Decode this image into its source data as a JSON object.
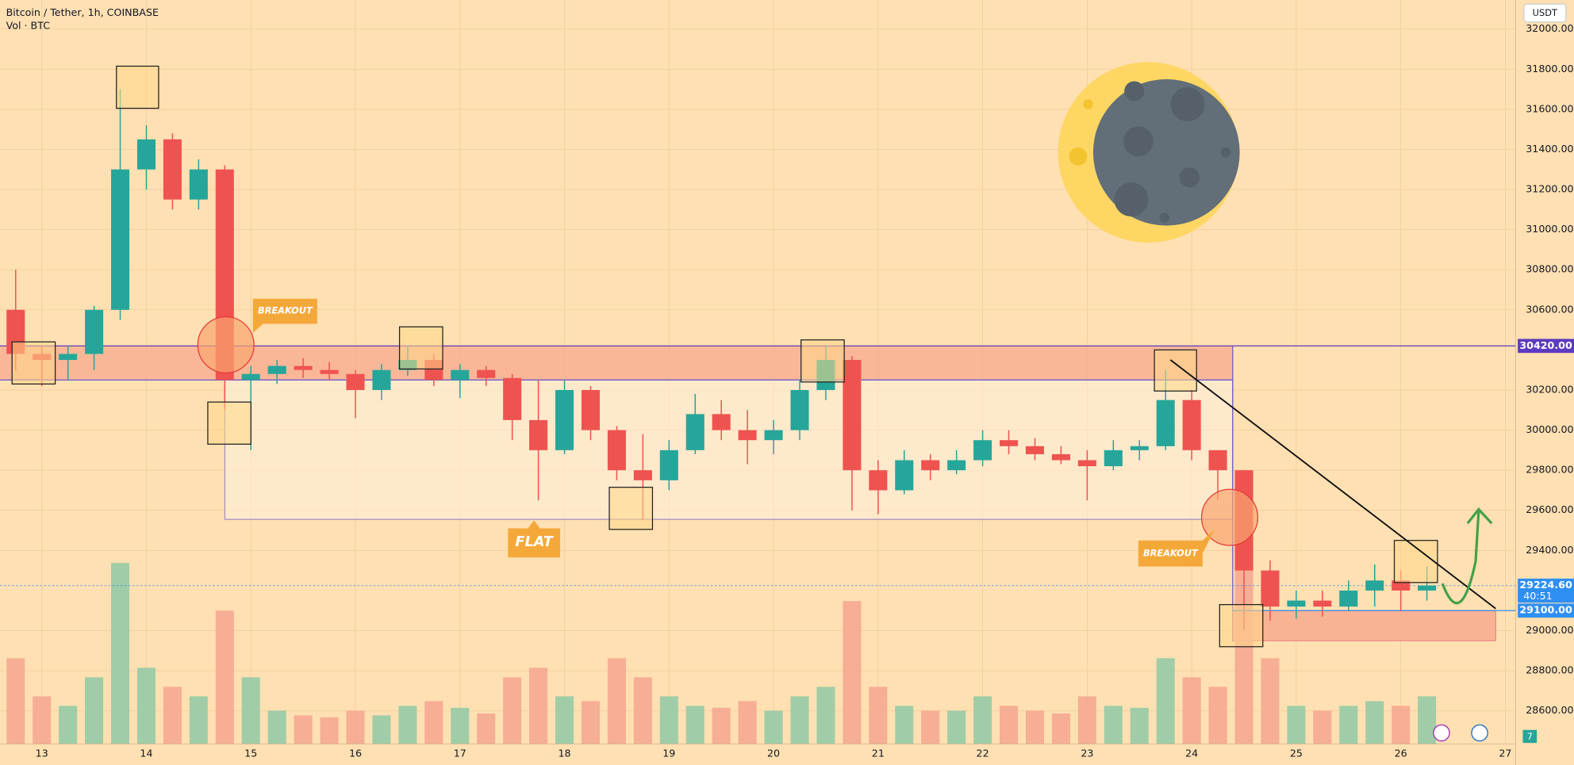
{
  "header": {
    "title": "Bitcoin / Tether, 1h, COINBASE",
    "subtitle": "Vol · BTC",
    "currency": "USDT",
    "badge": "7"
  },
  "chart_data": {
    "type": "candlestick",
    "x": [
      12.75,
      13,
      13.25,
      13.5,
      13.75,
      14,
      14.25,
      14.5,
      14.75,
      15,
      15.25,
      15.5,
      15.75,
      16,
      16.25,
      16.5,
      16.75,
      17,
      17.25,
      17.5,
      17.75,
      18,
      18.25,
      18.5,
      18.75,
      19,
      19.25,
      19.5,
      19.75,
      20,
      20.25,
      20.5,
      20.75,
      21,
      21.25,
      21.5,
      21.75,
      22,
      22.25,
      22.5,
      22.75,
      23,
      23.25,
      23.5,
      23.75,
      24,
      24.25,
      24.5,
      24.75,
      25,
      25.25,
      25.5,
      25.75,
      26,
      26.25
    ],
    "candles": [
      [
        30600,
        30800,
        30300,
        30380
      ],
      [
        30380,
        30420,
        30220,
        30350
      ],
      [
        30350,
        30420,
        30250,
        30380
      ],
      [
        30380,
        30620,
        30300,
        30600
      ],
      [
        30600,
        31700,
        30550,
        31300
      ],
      [
        31300,
        31520,
        31200,
        31450
      ],
      [
        31450,
        31480,
        31100,
        31150
      ],
      [
        31150,
        31350,
        31100,
        31300
      ],
      [
        31300,
        31320,
        30100,
        30250
      ],
      [
        30250,
        30320,
        29900,
        30280
      ],
      [
        30280,
        30350,
        30230,
        30320
      ],
      [
        30320,
        30360,
        30260,
        30300
      ],
      [
        30300,
        30340,
        30250,
        30280
      ],
      [
        30280,
        30300,
        30060,
        30200
      ],
      [
        30200,
        30330,
        30150,
        30300
      ],
      [
        30300,
        30420,
        30270,
        30350
      ],
      [
        30350,
        30380,
        30220,
        30250
      ],
      [
        30250,
        30330,
        30160,
        30300
      ],
      [
        30300,
        30320,
        30220,
        30260
      ],
      [
        30260,
        30280,
        29950,
        30050
      ],
      [
        30050,
        30250,
        29650,
        29900
      ],
      [
        29900,
        30250,
        29880,
        30200
      ],
      [
        30200,
        30220,
        29950,
        30000
      ],
      [
        30000,
        30020,
        29750,
        29800
      ],
      [
        29800,
        29980,
        29550,
        29750
      ],
      [
        29750,
        29950,
        29700,
        29900
      ],
      [
        29900,
        30180,
        29880,
        30080
      ],
      [
        30080,
        30150,
        29950,
        30000
      ],
      [
        30000,
        30100,
        29830,
        29950
      ],
      [
        29950,
        30050,
        29880,
        30000
      ],
      [
        30000,
        30250,
        29950,
        30200
      ],
      [
        30200,
        30420,
        30150,
        30350
      ],
      [
        30350,
        30370,
        29600,
        29800
      ],
      [
        29800,
        29850,
        29580,
        29700
      ],
      [
        29700,
        29900,
        29680,
        29850
      ],
      [
        29850,
        29880,
        29750,
        29800
      ],
      [
        29800,
        29900,
        29780,
        29850
      ],
      [
        29850,
        30000,
        29820,
        29950
      ],
      [
        29950,
        30000,
        29880,
        29920
      ],
      [
        29920,
        29960,
        29850,
        29880
      ],
      [
        29880,
        29920,
        29830,
        29850
      ],
      [
        29850,
        29900,
        29650,
        29820
      ],
      [
        29820,
        29950,
        29800,
        29900
      ],
      [
        29900,
        29950,
        29850,
        29920
      ],
      [
        29920,
        30300,
        29900,
        30150
      ],
      [
        30150,
        30200,
        29850,
        29900
      ],
      [
        29900,
        29900,
        29650,
        29800
      ],
      [
        29800,
        29800,
        29000,
        29300
      ],
      [
        29300,
        29350,
        29050,
        29120
      ],
      [
        29120,
        29200,
        29060,
        29150
      ],
      [
        29150,
        29200,
        29070,
        29120
      ],
      [
        29120,
        29250,
        29100,
        29200
      ],
      [
        29200,
        29330,
        29120,
        29250
      ],
      [
        29250,
        29300,
        29100,
        29200
      ],
      [
        29200,
        29320,
        29150,
        29225
      ]
    ],
    "volumes": [
      900,
      500,
      400,
      700,
      1900,
      800,
      600,
      500,
      1400,
      700,
      350,
      300,
      280,
      350,
      300,
      400,
      450,
      380,
      320,
      700,
      800,
      500,
      450,
      900,
      700,
      500,
      400,
      380,
      450,
      350,
      500,
      600,
      1500,
      600,
      400,
      350,
      350,
      500,
      400,
      350,
      320,
      500,
      400,
      380,
      900,
      700,
      600,
      2000,
      900,
      400,
      350,
      400,
      450,
      400,
      500
    ],
    "up_color": "#26a69a",
    "down_color": "#ef5350",
    "up_volume_color": "#8fc9a4",
    "down_volume_color": "#f5a48f",
    "xlim": [
      12.6,
      27.1
    ],
    "xticks": [
      13,
      14,
      15,
      16,
      17,
      18,
      19,
      20,
      21,
      22,
      23,
      24,
      25,
      26,
      27
    ],
    "ylim": [
      28435,
      32145
    ],
    "yticks": [
      {
        "value": 28600,
        "label": "28600.00"
      },
      {
        "value": 28800,
        "label": "28800.00"
      },
      {
        "value": 29000,
        "label": "29000.00"
      },
      {
        "value": 29400,
        "label": "29400.00"
      },
      {
        "value": 29600,
        "label": "29600.00"
      },
      {
        "value": 29800,
        "label": "29800.00"
      },
      {
        "value": 30000,
        "label": "30000.00"
      },
      {
        "value": 30200,
        "label": "30200.00"
      },
      {
        "value": 30600,
        "label": "30600.00"
      },
      {
        "value": 30800,
        "label": "30800.00"
      },
      {
        "value": 31000,
        "label": "31000.00"
      },
      {
        "value": 31200,
        "label": "31200.00"
      },
      {
        "value": 31400,
        "label": "31400.00"
      },
      {
        "value": 31600,
        "label": "31600.00"
      },
      {
        "value": 31800,
        "label": "31800.00"
      },
      {
        "value": 32000,
        "label": "32000.00"
      }
    ],
    "grid": true,
    "price_labels": [
      {
        "value": 30420,
        "label": "30420.00",
        "color": "#5b3bbf"
      },
      {
        "value": 29224.6,
        "label": "29224.60",
        "color": "#2e8ff2"
      },
      {
        "value": 29100,
        "label": "29100.00",
        "color": "#2e8ff2"
      }
    ],
    "countdown": "40:51",
    "annotations": [
      "BREAKOUT",
      "FLAT",
      "BREAKOUT"
    ]
  }
}
